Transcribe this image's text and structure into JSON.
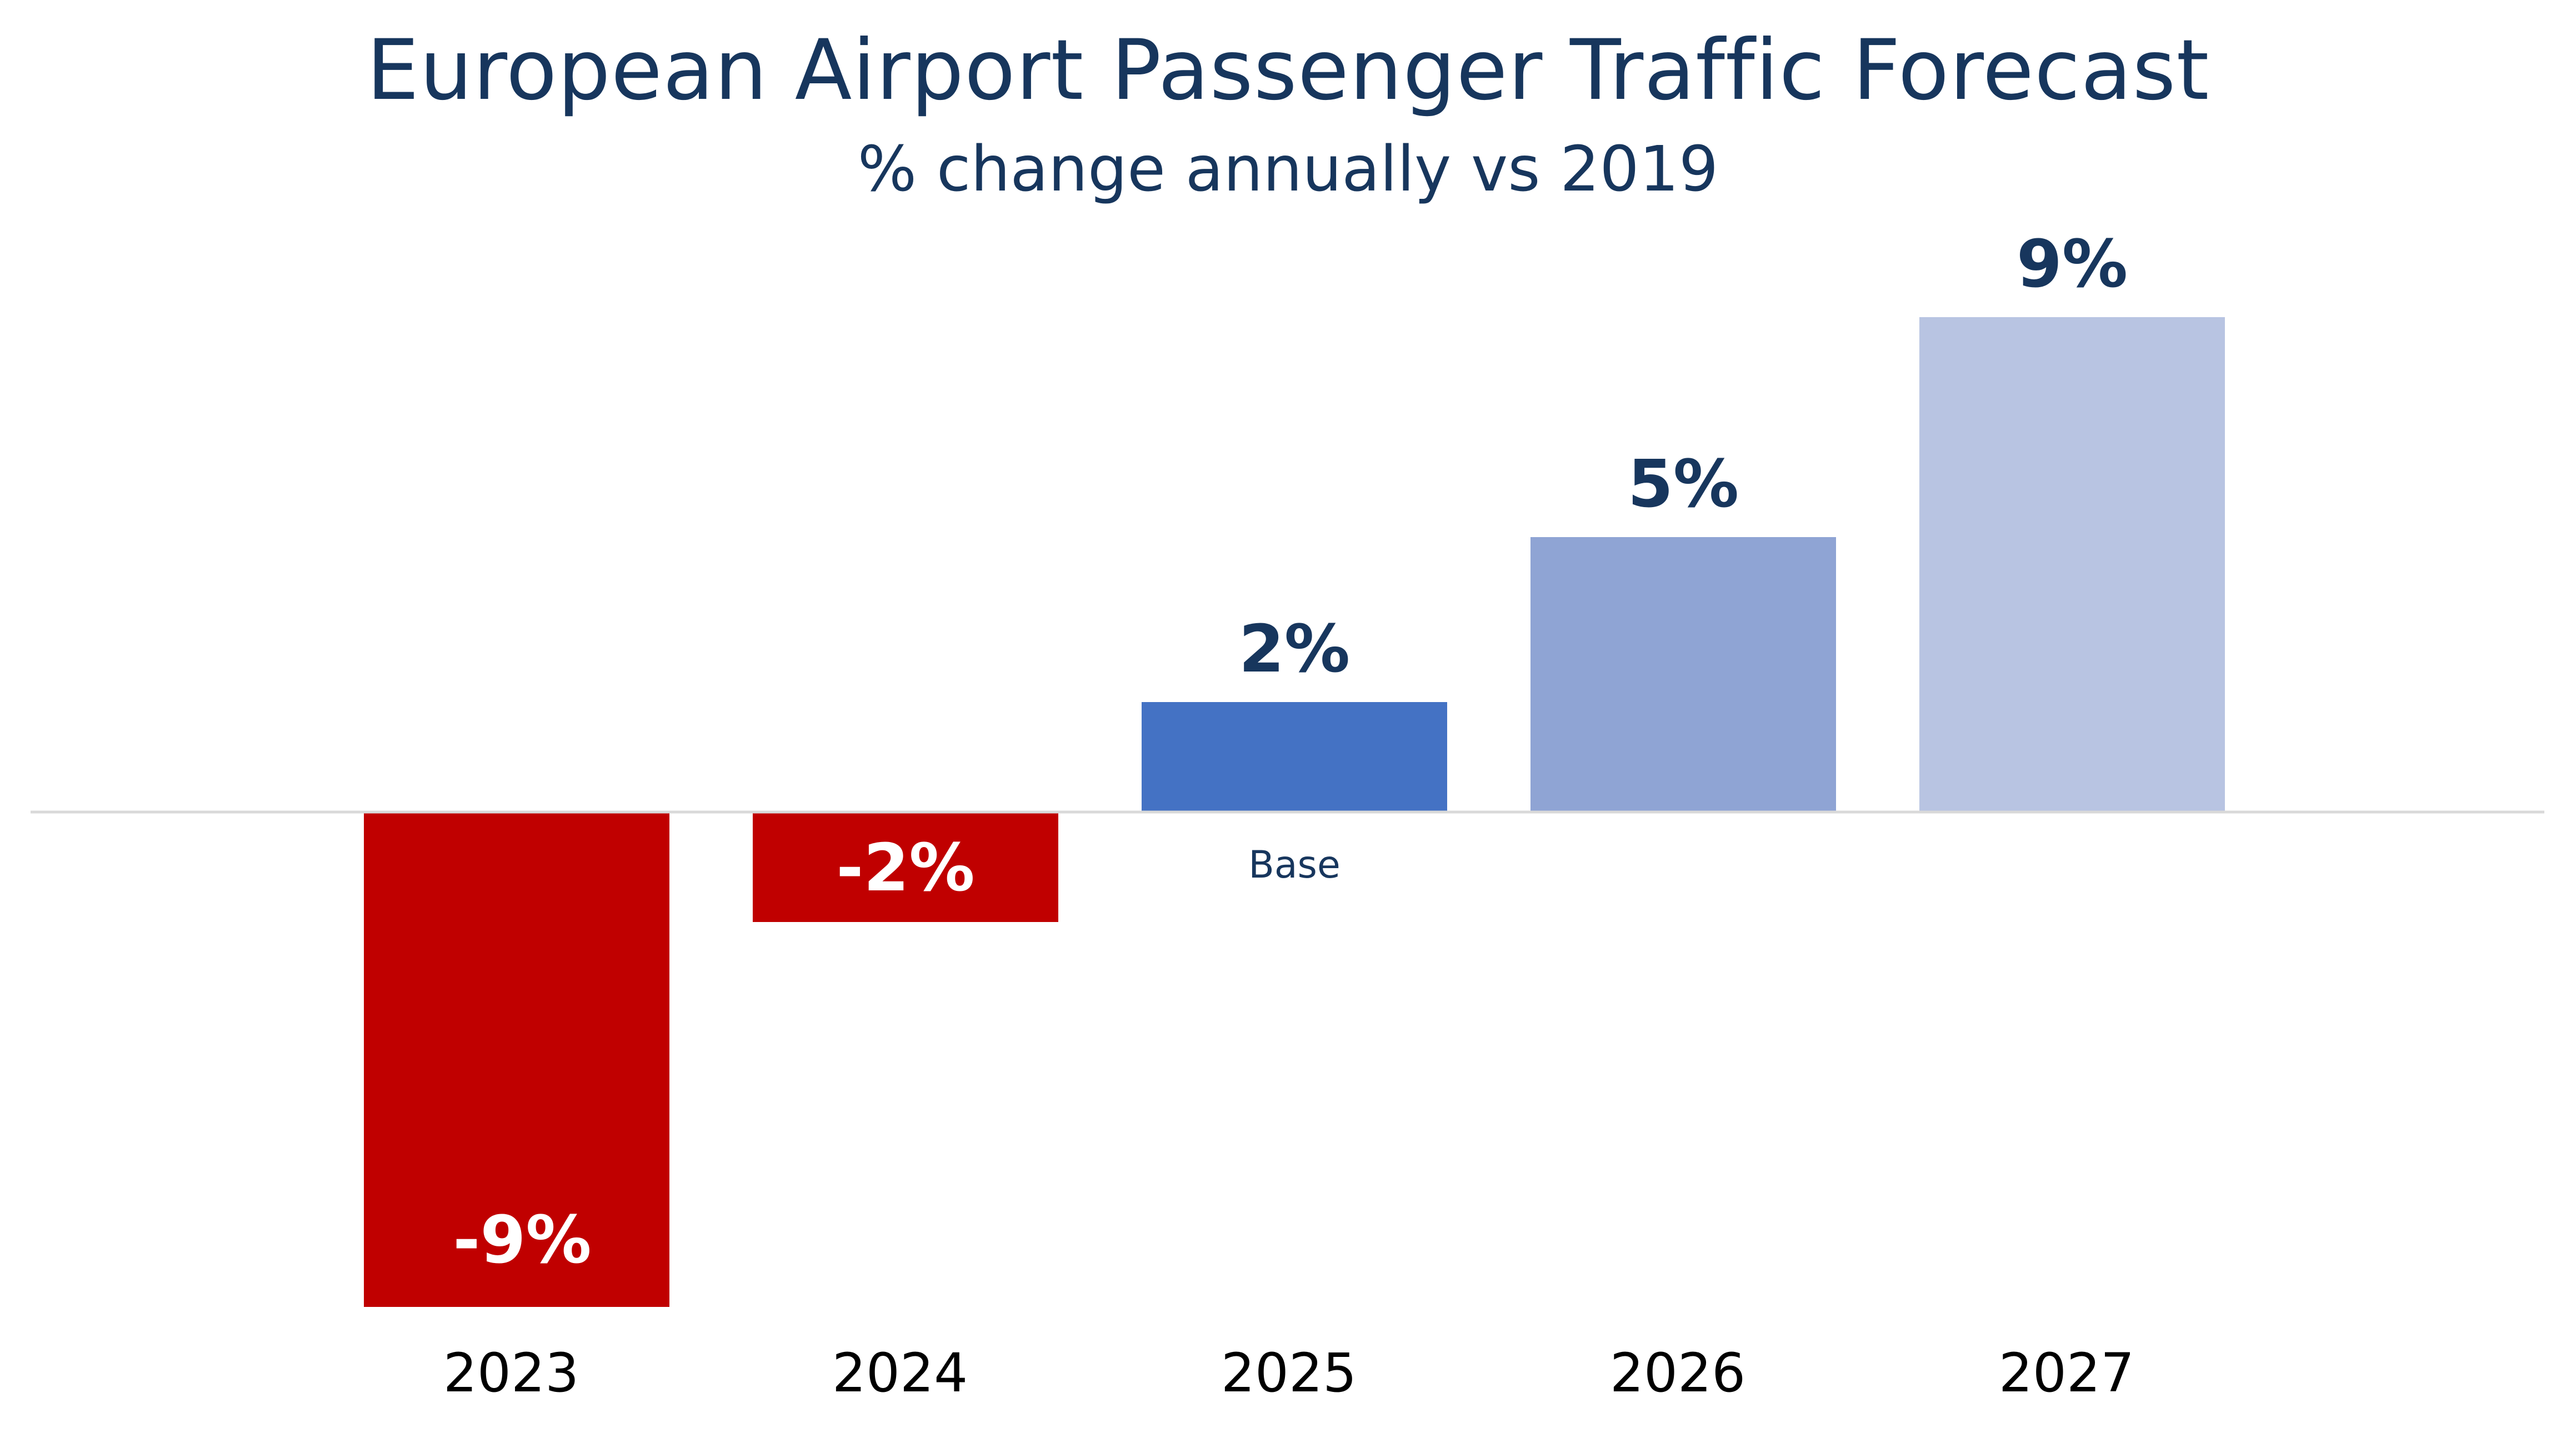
{
  "chart_data": {
    "type": "bar",
    "title": "European Airport Passenger Traffic Forecast",
    "subtitle": "% change annually vs 2019",
    "categories": [
      "2023",
      "2024",
      "2025",
      "2026",
      "2027"
    ],
    "values": [
      -9,
      -2,
      2,
      5,
      9
    ],
    "value_labels": [
      "-9%",
      "-2%",
      "2%",
      "5%",
      "9%"
    ],
    "bar_colors": [
      "#c00000",
      "#c00000",
      "#4472c4",
      "#8fa4d4",
      "#b8c4e2"
    ],
    "label_colors": {
      "negative": "#ffffff",
      "positive": "#17365d"
    },
    "annotations": [
      {
        "category": "2025",
        "text": "Base"
      }
    ],
    "xlabel": "",
    "ylabel": "",
    "ylim": [
      -9,
      9
    ],
    "grid": false,
    "legend": "none",
    "baseline_color": "#d9d9d9"
  }
}
